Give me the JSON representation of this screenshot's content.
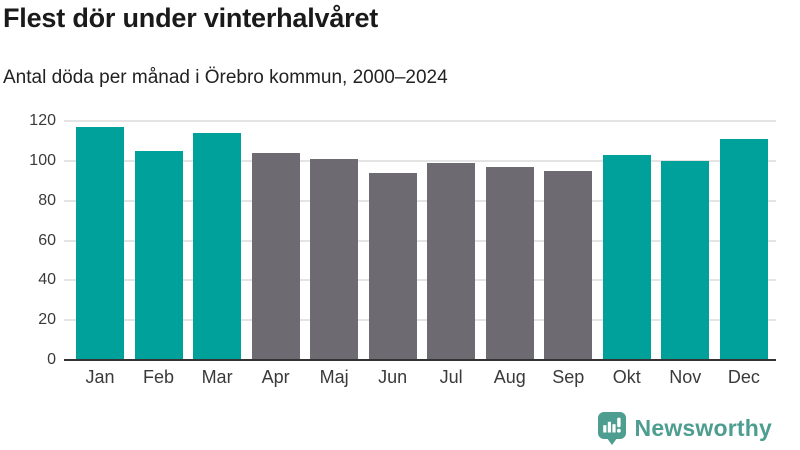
{
  "header": {
    "title": "Flest dör under vinterhalvåret",
    "subtitle": "Antal döda per månad i Örebro kommun, 2000–2024"
  },
  "chart_data": {
    "type": "bar",
    "title": "Flest dör under vinterhalvåret",
    "subtitle": "Antal döda per månad i Örebro kommun, 2000–2024",
    "categories": [
      "Jan",
      "Feb",
      "Mar",
      "Apr",
      "Maj",
      "Jun",
      "Jul",
      "Aug",
      "Sep",
      "Okt",
      "Nov",
      "Dec"
    ],
    "values": [
      117,
      105,
      114,
      104,
      101,
      94,
      99,
      97,
      95,
      103,
      100,
      111
    ],
    "bar_colors": [
      "teal",
      "teal",
      "teal",
      "gray",
      "gray",
      "gray",
      "gray",
      "gray",
      "gray",
      "teal",
      "teal",
      "teal"
    ],
    "xlabel": "",
    "ylabel": "",
    "ylim": [
      0,
      120
    ],
    "y_ticks": [
      0,
      20,
      40,
      60,
      80,
      100,
      120
    ],
    "grid": true,
    "legend": false
  },
  "colors": {
    "teal_bar": "#00a19b",
    "gray_bar": "#6d6a71",
    "logo_teal": "#4e9d91",
    "gridline": "#e4e4e4",
    "axis_line": "#333333",
    "title_text": "#1a1a1a",
    "subtitle_text": "#222222",
    "axis_text": "#3a3a3a"
  },
  "footer": {
    "brand": "Newsworthy",
    "logo_icon": "newsworthy-bubble-bar-chart-icon"
  }
}
